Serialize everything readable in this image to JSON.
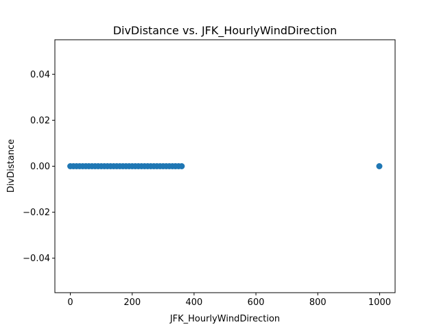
{
  "chart_data": {
    "type": "scatter",
    "title": "DivDistance vs. JFK_HourlyWindDirection",
    "xlabel": "JFK_HourlyWindDirection",
    "ylabel": "DivDistance",
    "xlim": [
      -50,
      1050
    ],
    "ylim": [
      -0.055,
      0.055
    ],
    "x_ticks": [
      0,
      200,
      400,
      600,
      800,
      1000
    ],
    "x_tick_labels": [
      "0",
      "200",
      "400",
      "600",
      "800",
      "1000"
    ],
    "y_ticks": [
      -0.04,
      -0.02,
      0.0,
      0.02,
      0.04
    ],
    "y_tick_labels": [
      "−0.04",
      "−0.02",
      "0.00",
      "0.02",
      "0.04"
    ],
    "grid": false,
    "point_color": "#1f77b4",
    "series": [
      {
        "x_start": 0,
        "x_end": 360,
        "x_step": 10,
        "extra_x": [
          999
        ],
        "y": 0
      }
    ]
  }
}
